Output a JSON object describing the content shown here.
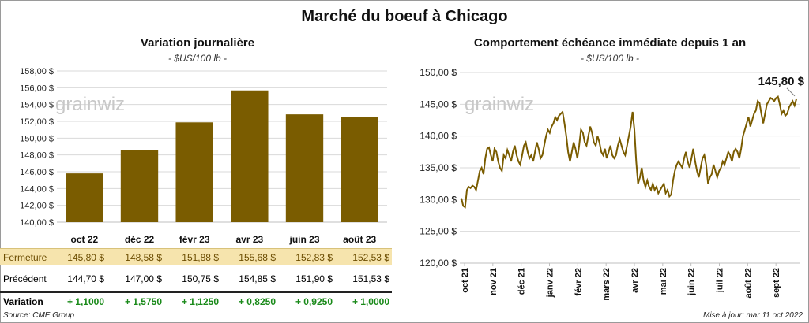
{
  "title": "Marché du boeuf à Chicago",
  "left": {
    "title": "Variation journalière",
    "unit": "- $US/100 lb -"
  },
  "right": {
    "title": "Comportement échéance immédiate depuis 1 an",
    "unit": "- $US/100 lb -",
    "last_label": "145,80 $"
  },
  "watermark": "grainwiz",
  "table": {
    "fermeture_label": "Fermeture",
    "precedent_label": "Précédent",
    "variation_label": "Variation",
    "fermeture": [
      "145,80 $",
      "148,58 $",
      "151,88 $",
      "155,68 $",
      "152,83 $",
      "152,53 $"
    ],
    "precedent": [
      "144,70 $",
      "147,00 $",
      "150,75 $",
      "154,85 $",
      "151,90 $",
      "151,53 $"
    ],
    "variation": [
      "+ 1,1000",
      "+ 1,5750",
      "+ 1,1250",
      "+ 0,8250",
      "+ 0,9250",
      "+ 1,0000"
    ]
  },
  "footer": {
    "source": "Source: CME Group",
    "updated": "Mise à jour: mar 11 oct 2022"
  },
  "colors": {
    "bar": "#7a5c00",
    "line": "#7a5c00",
    "fermeture_bg": "#f6e4ad",
    "variation": "#1a8a1a"
  },
  "chart_data": [
    {
      "type": "bar",
      "categories": [
        "oct 22",
        "déc 22",
        "févr 23",
        "avr 23",
        "juin 23",
        "août 23"
      ],
      "values": [
        145.8,
        148.58,
        151.88,
        155.68,
        152.83,
        152.53
      ],
      "ylim": [
        140,
        158
      ],
      "yticks": [
        "140,00 $",
        "142,00 $",
        "144,00 $",
        "146,00 $",
        "148,00 $",
        "150,00 $",
        "152,00 $",
        "154,00 $",
        "156,00 $",
        "158,00 $"
      ],
      "grid": true
    },
    {
      "type": "line",
      "xticks": [
        "oct 21",
        "nov 21",
        "déc 21",
        "janv 22",
        "févr 22",
        "mars 22",
        "avr 22",
        "mai 22",
        "juin 22",
        "juil 22",
        "août 22",
        "sept 22"
      ],
      "ylim": [
        120,
        150
      ],
      "yticks": [
        "120,00 $",
        "125,00 $",
        "130,00 $",
        "135,00 $",
        "140,00 $",
        "145,00 $",
        "150,00 $"
      ],
      "values": [
        130.2,
        129.0,
        128.8,
        131.5,
        132.0,
        131.8,
        132.2,
        132.0,
        131.5,
        133.0,
        134.5,
        135.0,
        134.0,
        136.5,
        138.0,
        138.2,
        137.0,
        136.0,
        138.0,
        137.5,
        136.0,
        135.0,
        134.5,
        137.0,
        136.5,
        137.8,
        137.0,
        136.0,
        137.5,
        138.5,
        137.0,
        136.0,
        135.5,
        137.0,
        138.5,
        139.0,
        137.5,
        136.5,
        137.0,
        136.0,
        137.5,
        139.0,
        138.0,
        136.5,
        137.0,
        138.5,
        140.0,
        141.0,
        140.5,
        141.5,
        142.0,
        143.0,
        142.5,
        143.2,
        143.5,
        143.8,
        142.0,
        140.0,
        137.5,
        136.0,
        137.5,
        139.0,
        138.0,
        136.5,
        138.5,
        141.0,
        140.5,
        139.0,
        138.5,
        140.0,
        141.5,
        140.5,
        139.0,
        138.5,
        140.0,
        139.0,
        137.5,
        137.0,
        138.0,
        136.5,
        137.5,
        138.5,
        137.0,
        136.5,
        137.0,
        138.5,
        139.5,
        138.5,
        137.5,
        137.0,
        138.5,
        140.0,
        141.5,
        143.8,
        141.0,
        136.0,
        132.5,
        133.5,
        135.0,
        133.0,
        132.0,
        133.0,
        132.0,
        131.5,
        132.5,
        131.5,
        132.0,
        131.0,
        131.5,
        132.0,
        132.5,
        131.0,
        131.5,
        130.5,
        130.8,
        133.0,
        134.5,
        135.5,
        136.0,
        135.5,
        135.0,
        136.5,
        137.5,
        136.0,
        135.0,
        136.5,
        138.0,
        136.0,
        134.5,
        133.5,
        135.0,
        136.5,
        137.0,
        135.5,
        132.5,
        133.5,
        134.0,
        135.5,
        134.5,
        133.5,
        134.5,
        135.0,
        136.0,
        135.5,
        136.5,
        137.5,
        137.0,
        136.0,
        137.5,
        138.0,
        137.5,
        136.5,
        138.0,
        140.0,
        141.0,
        142.0,
        143.0,
        141.5,
        142.5,
        143.5,
        144.0,
        145.5,
        145.2,
        143.5,
        142.0,
        143.5,
        145.0,
        145.5,
        146.0,
        145.8,
        145.5,
        146.0,
        146.2,
        145.0,
        143.5,
        144.0,
        143.2,
        143.5,
        144.5,
        145.0,
        145.5,
        144.8,
        145.8
      ]
    }
  ]
}
